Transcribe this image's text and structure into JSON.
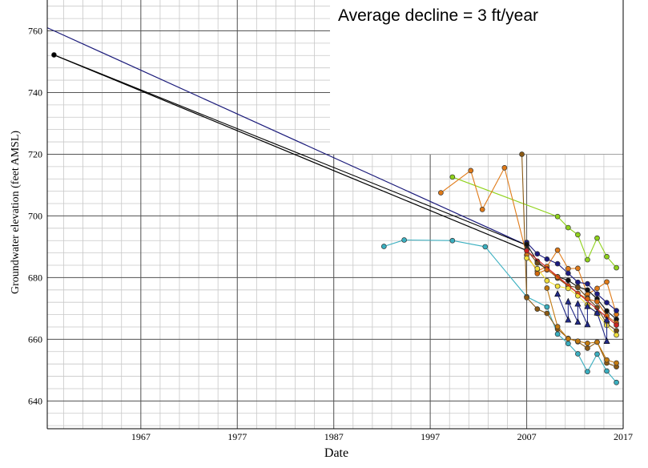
{
  "chart_data": {
    "type": "scatter",
    "annotation": "Average decline = 3 ft/year",
    "xlabel": "Date",
    "ylabel": "Groundwater elevation (feet AMSL)",
    "xlim": [
      1957.3,
      2017
    ],
    "ylim": [
      631,
      770
    ],
    "x_tick_labels": [
      "1967",
      "1977",
      "1987",
      "1997",
      "2007",
      "2017"
    ],
    "y_tick_labels": [
      "640",
      "660",
      "680",
      "700",
      "720",
      "740",
      "760"
    ],
    "grid": true,
    "series": [
      {
        "color": "#000000",
        "marker": "circle",
        "points": [
          [
            1958.0,
            752.2
          ],
          [
            2007.0,
            690.5
          ]
        ]
      },
      {
        "color": "#8fd21a",
        "marker": "circle",
        "points": [
          [
            1999.3,
            712.6
          ],
          [
            2010.2,
            699.8
          ],
          [
            2011.3,
            696.2
          ],
          [
            2012.3,
            693.9
          ],
          [
            2013.3,
            685.8
          ],
          [
            2014.3,
            692.8
          ],
          [
            2015.3,
            686.8
          ],
          [
            2016.3,
            683.2
          ]
        ]
      },
      {
        "color": "#3aafc0",
        "marker": "circle",
        "points": [
          [
            1992.2,
            690.1
          ],
          [
            1994.3,
            692.2
          ],
          [
            1999.3,
            692.0
          ],
          [
            2002.7,
            690.0
          ],
          [
            2007.0,
            673.8
          ],
          [
            2009.1,
            670.5
          ],
          [
            2010.2,
            661.7
          ],
          [
            2011.3,
            658.6
          ],
          [
            2012.3,
            655.3
          ],
          [
            2013.3,
            649.5
          ],
          [
            2014.3,
            655.2
          ],
          [
            2015.3,
            649.7
          ],
          [
            2016.3,
            646.0
          ]
        ]
      },
      {
        "color": "#e07a18",
        "marker": "circle",
        "points": [
          [
            1998.1,
            707.5
          ],
          [
            2001.2,
            714.7
          ],
          [
            2002.4,
            702.1
          ],
          [
            2004.7,
            715.6
          ],
          [
            2007.0,
            687.3
          ],
          [
            2008.1,
            682.1
          ],
          [
            2009.1,
            683.6
          ],
          [
            2010.2,
            688.9
          ],
          [
            2011.3,
            682.9
          ],
          [
            2012.3,
            683.0
          ],
          [
            2013.3,
            674.6
          ],
          [
            2014.3,
            676.5
          ],
          [
            2015.3,
            678.6
          ],
          [
            2016.3,
            668.1
          ]
        ]
      },
      {
        "color": "#8b5a14",
        "marker": "circle",
        "points": [
          [
            2006.5,
            720.0
          ],
          [
            2007.0,
            673.5
          ],
          [
            2008.1,
            669.8
          ],
          [
            2009.1,
            668.4
          ],
          [
            2010.2,
            663.3
          ],
          [
            2011.3,
            660.3
          ],
          [
            2012.3,
            659.2
          ],
          [
            2013.3,
            657.1
          ],
          [
            2014.3,
            659.1
          ],
          [
            2015.3,
            652.3
          ],
          [
            2016.3,
            651.1
          ]
        ]
      },
      {
        "color": "#c27a10",
        "marker": "circle",
        "points": [
          [
            2009.1,
            676.6
          ],
          [
            2010.2,
            664.1
          ],
          [
            2011.3,
            660.2
          ],
          [
            2012.3,
            659.4
          ],
          [
            2013.3,
            658.7
          ],
          [
            2014.3,
            659.1
          ],
          [
            2015.3,
            653.3
          ],
          [
            2016.3,
            652.3
          ]
        ]
      },
      {
        "color": "#1a1a80",
        "marker": "circle",
        "points": [
          [
            2007.0,
            691.4
          ],
          [
            2008.1,
            687.7
          ],
          [
            2009.1,
            686.0
          ],
          [
            2010.2,
            684.5
          ],
          [
            2011.3,
            681.4
          ],
          [
            2012.3,
            678.5
          ],
          [
            2013.3,
            678.0
          ],
          [
            2014.3,
            674.7
          ],
          [
            2015.3,
            671.9
          ],
          [
            2016.3,
            669.3
          ]
        ]
      },
      {
        "color": "#111111",
        "marker": "circle",
        "points": [
          [
            2007.0,
            690.8
          ],
          [
            2008.1,
            685.3
          ],
          [
            2009.1,
            682.5
          ],
          [
            2010.2,
            680.3
          ],
          [
            2011.3,
            679.1
          ],
          [
            2012.3,
            677.0
          ],
          [
            2013.3,
            676.0
          ],
          [
            2014.3,
            673.1
          ],
          [
            2015.3,
            669.2
          ],
          [
            2016.3,
            666.5
          ]
        ]
      },
      {
        "color": "#6d4a1a",
        "marker": "circle",
        "points": [
          [
            2007.0,
            689.0
          ],
          [
            2008.1,
            684.7
          ],
          [
            2009.1,
            682.8
          ],
          [
            2010.2,
            679.8
          ],
          [
            2011.3,
            677.3
          ],
          [
            2012.3,
            676.8
          ],
          [
            2013.3,
            673.4
          ],
          [
            2014.3,
            670.3
          ],
          [
            2015.3,
            665.1
          ],
          [
            2016.3,
            662.8
          ]
        ]
      },
      {
        "color": "#d2690e",
        "marker": "circle",
        "points": [
          [
            2008.1,
            681.3
          ],
          [
            2009.1,
            682.6
          ],
          [
            2010.2,
            680.2
          ],
          [
            2011.3,
            677.4
          ],
          [
            2012.3,
            674.9
          ],
          [
            2013.3,
            673.1
          ],
          [
            2014.3,
            672.2
          ],
          [
            2015.3,
            667.6
          ],
          [
            2016.3,
            665.3
          ]
        ]
      },
      {
        "color": "#f2e03c",
        "marker": "circle",
        "points": [
          [
            2007.0,
            686.3
          ],
          [
            2008.1,
            682.9
          ],
          [
            2009.1,
            679.0
          ],
          [
            2010.2,
            677.2
          ],
          [
            2011.3,
            676.5
          ],
          [
            2012.3,
            674.1
          ],
          [
            2013.3,
            671.2
          ],
          [
            2014.3,
            668.4
          ],
          [
            2015.3,
            664.5
          ],
          [
            2016.3,
            661.4
          ]
        ]
      },
      {
        "color": "#cc2222",
        "marker": "circle",
        "points": [
          [
            2007.0,
            688.7
          ],
          [
            2016.3,
            664.6
          ]
        ]
      },
      {
        "color": "#222a88",
        "marker": "triangle",
        "points": [
          [
            2010.2,
            674.7
          ],
          [
            2011.3,
            666.3
          ],
          [
            2011.3,
            672.2
          ],
          [
            2012.3,
            665.6
          ],
          [
            2012.3,
            671.5
          ],
          [
            2013.3,
            664.8
          ],
          [
            2013.3,
            670.7
          ],
          [
            2014.3,
            668.6
          ],
          [
            2015.3,
            659.4
          ],
          [
            2015.3,
            666.3
          ]
        ]
      }
    ],
    "trend_lines": [
      {
        "color": "#1a1a7a",
        "points": [
          [
            1957.3,
            761.0
          ],
          [
            2007.0,
            690.5
          ]
        ]
      },
      {
        "color": "#000000",
        "points": [
          [
            1958.0,
            752.2
          ],
          [
            2007.0,
            688.8
          ]
        ]
      }
    ]
  }
}
